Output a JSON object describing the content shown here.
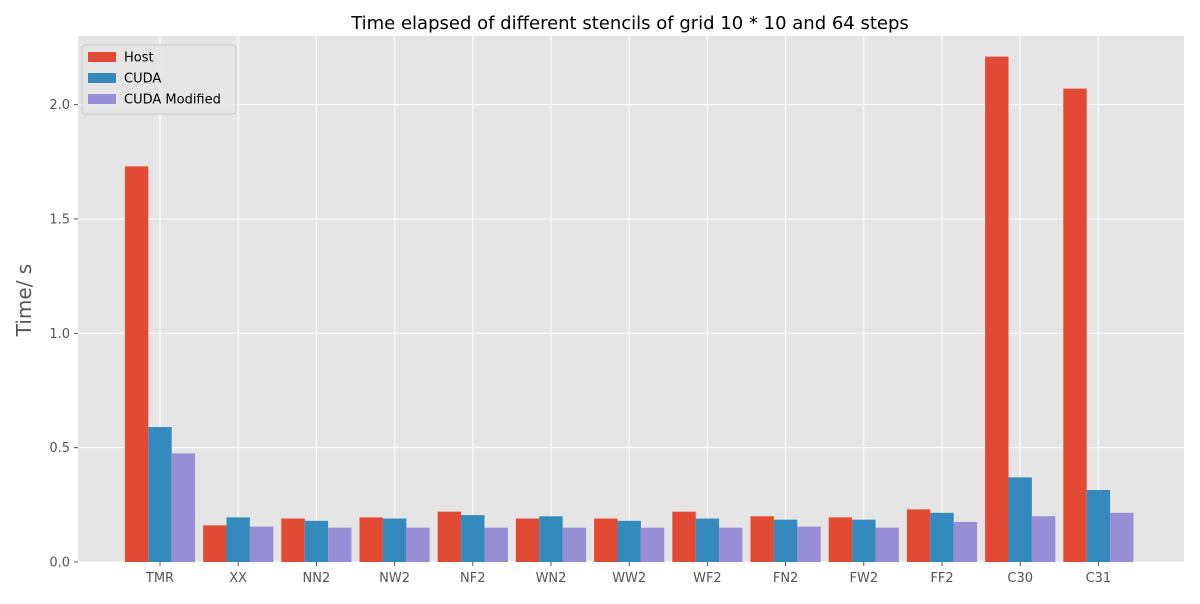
{
  "chart_data": {
    "type": "bar",
    "title": "Time elapsed of different stencils of grid 10 * 10 and 64 steps",
    "xlabel": "",
    "ylabel": "Time/ s",
    "ylim": [
      0,
      2.3
    ],
    "yticks": [
      0.0,
      0.5,
      1.0,
      1.5,
      2.0
    ],
    "ytick_labels": [
      "0.0",
      "0.5",
      "1.0",
      "1.5",
      "2.0"
    ],
    "grid": true,
    "legend_position": "top-left",
    "categories": [
      "TMR",
      "XX",
      "NN2",
      "NW2",
      "NF2",
      "WN2",
      "WW2",
      "WF2",
      "FN2",
      "FW2",
      "FF2",
      "C30",
      "C31"
    ],
    "series": [
      {
        "name": "Host",
        "color": "#E24A33",
        "values": [
          1.73,
          0.16,
          0.19,
          0.195,
          0.22,
          0.19,
          0.19,
          0.22,
          0.2,
          0.195,
          0.23,
          2.21,
          2.07
        ]
      },
      {
        "name": "CUDA",
        "color": "#348ABD",
        "values": [
          0.59,
          0.195,
          0.18,
          0.19,
          0.205,
          0.2,
          0.18,
          0.19,
          0.185,
          0.185,
          0.215,
          0.37,
          0.315
        ]
      },
      {
        "name": "CUDA Modified",
        "color": "#988ED5",
        "values": [
          0.475,
          0.155,
          0.15,
          0.15,
          0.15,
          0.15,
          0.15,
          0.15,
          0.155,
          0.15,
          0.175,
          0.2,
          0.215
        ]
      }
    ]
  }
}
